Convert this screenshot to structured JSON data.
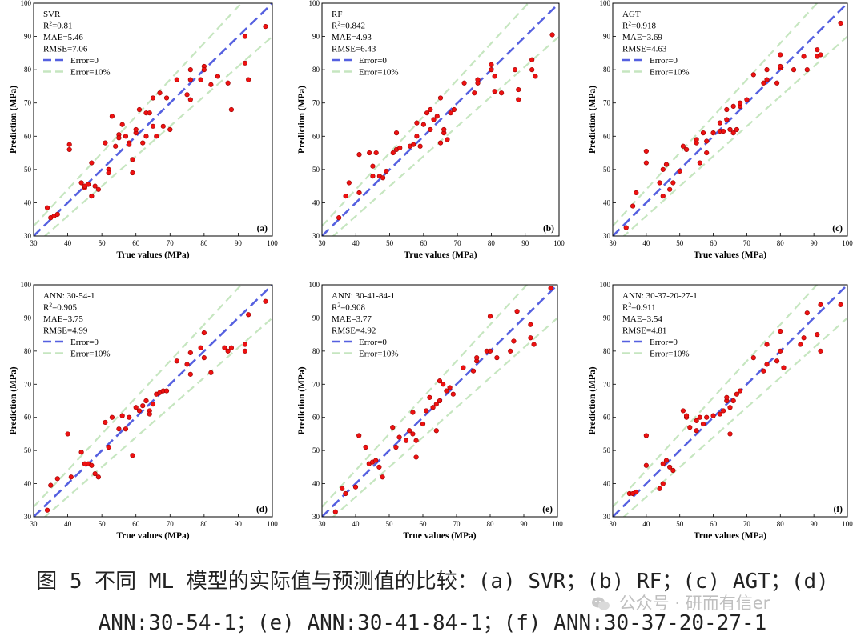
{
  "common": {
    "xlabel": "True values (MPa)",
    "ylabel": "Prediction (MPa)",
    "legend_error0": "Error=0",
    "legend_error10": "Error=10%",
    "colors": {
      "error0_line": "#5560e0",
      "error10_line": "#c6e6c0",
      "point_fill": "#ee1111",
      "point_stroke": "#990000",
      "axis": "#000000"
    }
  },
  "chart_data": [
    {
      "type": "scatter",
      "panel": "(a)",
      "model": "SVR",
      "stats": {
        "r2": "0.81",
        "mae": "5.46",
        "rmse": "7.06"
      },
      "xlim": [
        30,
        100
      ],
      "ylim": [
        30,
        100
      ],
      "ticks": [
        30,
        40,
        50,
        60,
        70,
        80,
        90,
        100
      ],
      "points": [
        [
          34,
          38.5
        ],
        [
          35,
          35.5
        ],
        [
          36,
          36
        ],
        [
          37,
          36.5
        ],
        [
          40.5,
          56
        ],
        [
          40.5,
          57.5
        ],
        [
          44,
          46
        ],
        [
          45,
          44.5
        ],
        [
          45,
          45
        ],
        [
          46,
          45.5
        ],
        [
          47,
          42
        ],
        [
          47,
          52
        ],
        [
          48,
          45
        ],
        [
          49,
          44
        ],
        [
          51,
          58
        ],
        [
          52,
          50
        ],
        [
          52,
          49
        ],
        [
          53,
          66
        ],
        [
          54,
          57
        ],
        [
          55,
          60.5
        ],
        [
          55,
          59.5
        ],
        [
          56,
          63.5
        ],
        [
          57,
          60
        ],
        [
          58,
          58
        ],
        [
          58,
          57.5
        ],
        [
          59,
          53
        ],
        [
          59,
          49
        ],
        [
          60,
          61
        ],
        [
          60,
          62
        ],
        [
          61,
          68
        ],
        [
          62,
          58
        ],
        [
          63,
          67
        ],
        [
          63,
          60
        ],
        [
          64,
          67
        ],
        [
          65,
          71.5
        ],
        [
          65,
          63
        ],
        [
          66,
          60
        ],
        [
          67,
          73
        ],
        [
          68,
          63
        ],
        [
          69,
          71.5
        ],
        [
          70,
          62
        ],
        [
          72,
          77
        ],
        [
          75,
          72.5
        ],
        [
          76,
          71
        ],
        [
          76,
          77
        ],
        [
          76,
          80
        ],
        [
          79,
          77
        ],
        [
          80,
          81
        ],
        [
          80,
          80
        ],
        [
          82,
          75.5
        ],
        [
          84,
          78
        ],
        [
          87,
          76
        ],
        [
          88,
          68
        ],
        [
          92,
          82
        ],
        [
          92,
          90
        ],
        [
          93,
          77
        ],
        [
          98,
          93
        ]
      ]
    },
    {
      "type": "scatter",
      "panel": "(b)",
      "model": "RF",
      "stats": {
        "r2": "0.842",
        "mae": "4.93",
        "rmse": "6.43"
      },
      "xlim": [
        30,
        100
      ],
      "ylim": [
        30,
        100
      ],
      "ticks": [
        30,
        40,
        50,
        60,
        70,
        80,
        90,
        100
      ],
      "points": [
        [
          35,
          35.5
        ],
        [
          37,
          42
        ],
        [
          38,
          46
        ],
        [
          41,
          43
        ],
        [
          41,
          54.5
        ],
        [
          44,
          55
        ],
        [
          45,
          51
        ],
        [
          45,
          48
        ],
        [
          46,
          55
        ],
        [
          47,
          48
        ],
        [
          48,
          47.5
        ],
        [
          49,
          49.5
        ],
        [
          51,
          55
        ],
        [
          52,
          56
        ],
        [
          52,
          61
        ],
        [
          53,
          56.5
        ],
        [
          56,
          57
        ],
        [
          57,
          57.5
        ],
        [
          58,
          60
        ],
        [
          58,
          64
        ],
        [
          59,
          57
        ],
        [
          60,
          63.5
        ],
        [
          61,
          67
        ],
        [
          62,
          62
        ],
        [
          62,
          68
        ],
        [
          63,
          65
        ],
        [
          64,
          66
        ],
        [
          65,
          71.5
        ],
        [
          65,
          58
        ],
        [
          66,
          61
        ],
        [
          66,
          62
        ],
        [
          67,
          59
        ],
        [
          68,
          67
        ],
        [
          69,
          68
        ],
        [
          72,
          76
        ],
        [
          75,
          73
        ],
        [
          76,
          76
        ],
        [
          76,
          77
        ],
        [
          80,
          80
        ],
        [
          80,
          81.5
        ],
        [
          81,
          78
        ],
        [
          81,
          73.5
        ],
        [
          83,
          73
        ],
        [
          87,
          80
        ],
        [
          88,
          71
        ],
        [
          88,
          74
        ],
        [
          92,
          80
        ],
        [
          92,
          83
        ],
        [
          93,
          78
        ],
        [
          98,
          90.5
        ]
      ]
    },
    {
      "type": "scatter",
      "panel": "(c)",
      "model": "AGT",
      "stats": {
        "r2": "0.918",
        "mae": "3.69",
        "rmse": "4.63"
      },
      "xlim": [
        30,
        100
      ],
      "ylim": [
        30,
        100
      ],
      "ticks": [
        30,
        40,
        50,
        60,
        70,
        80,
        90,
        100
      ],
      "points": [
        [
          34,
          32.5
        ],
        [
          36,
          39
        ],
        [
          37,
          43
        ],
        [
          40,
          52
        ],
        [
          40,
          55.5
        ],
        [
          44,
          46
        ],
        [
          45,
          42
        ],
        [
          45,
          50
        ],
        [
          46,
          51.5
        ],
        [
          47,
          44
        ],
        [
          48,
          46
        ],
        [
          50,
          49.5
        ],
        [
          51,
          57
        ],
        [
          52,
          56
        ],
        [
          55,
          58
        ],
        [
          55,
          59
        ],
        [
          56,
          52
        ],
        [
          57,
          61
        ],
        [
          58,
          58.5
        ],
        [
          58,
          55
        ],
        [
          60,
          61
        ],
        [
          62,
          61.5
        ],
        [
          62,
          64
        ],
        [
          63,
          61.5
        ],
        [
          64,
          68
        ],
        [
          64,
          65
        ],
        [
          65,
          62
        ],
        [
          66,
          69
        ],
        [
          66,
          61
        ],
        [
          67,
          62
        ],
        [
          68,
          69
        ],
        [
          68,
          70
        ],
        [
          70,
          71
        ],
        [
          72,
          78.5
        ],
        [
          75,
          76
        ],
        [
          76,
          77
        ],
        [
          76,
          80
        ],
        [
          79,
          76
        ],
        [
          80,
          80.5
        ],
        [
          80,
          81
        ],
        [
          80,
          84.5
        ],
        [
          84,
          80
        ],
        [
          87,
          84
        ],
        [
          88,
          80
        ],
        [
          91,
          84
        ],
        [
          91,
          86
        ],
        [
          92,
          84.5
        ],
        [
          98,
          94
        ]
      ]
    },
    {
      "type": "scatter",
      "panel": "(d)",
      "model": "ANN: 30-54-1",
      "stats": {
        "r2": "0.905",
        "mae": "3.75",
        "rmse": "4.99"
      },
      "xlim": [
        30,
        100
      ],
      "ylim": [
        30,
        100
      ],
      "ticks": [
        30,
        40,
        50,
        60,
        70,
        80,
        90,
        100
      ],
      "points": [
        [
          34,
          32
        ],
        [
          35,
          39.5
        ],
        [
          37,
          41.5
        ],
        [
          40,
          55
        ],
        [
          41,
          42
        ],
        [
          44,
          49.5
        ],
        [
          45,
          46
        ],
        [
          46,
          46
        ],
        [
          47,
          45.5
        ],
        [
          48,
          43
        ],
        [
          49,
          42
        ],
        [
          51,
          58.5
        ],
        [
          52,
          51
        ],
        [
          53,
          60
        ],
        [
          55,
          56.5
        ],
        [
          56,
          60.5
        ],
        [
          57,
          56.5
        ],
        [
          58,
          60
        ],
        [
          59,
          48.5
        ],
        [
          60,
          63
        ],
        [
          61,
          62
        ],
        [
          62,
          63.5
        ],
        [
          63,
          65
        ],
        [
          64,
          62
        ],
        [
          64,
          61
        ],
        [
          65,
          64
        ],
        [
          66,
          67
        ],
        [
          67,
          67.5
        ],
        [
          68,
          68
        ],
        [
          69,
          68
        ],
        [
          72,
          77
        ],
        [
          75,
          76
        ],
        [
          76,
          79.5
        ],
        [
          76,
          73
        ],
        [
          79,
          81
        ],
        [
          80,
          78
        ],
        [
          80,
          85.5
        ],
        [
          82,
          73.5
        ],
        [
          86,
          81
        ],
        [
          87,
          80
        ],
        [
          88,
          81
        ],
        [
          92,
          80
        ],
        [
          92,
          82
        ],
        [
          93,
          91
        ],
        [
          98,
          95
        ]
      ]
    },
    {
      "type": "scatter",
      "panel": "(e)",
      "model": "ANN: 30-41-84-1",
      "stats": {
        "r2": "0.908",
        "mae": "3.77",
        "rmse": "4.92"
      },
      "xlim": [
        30,
        100
      ],
      "ylim": [
        30,
        100
      ],
      "ticks": [
        30,
        40,
        50,
        60,
        70,
        80,
        90,
        100
      ],
      "points": [
        [
          34,
          31.5
        ],
        [
          36,
          38.5
        ],
        [
          37,
          37
        ],
        [
          40,
          39
        ],
        [
          41,
          54.5
        ],
        [
          43,
          51
        ],
        [
          44,
          46
        ],
        [
          45,
          46.5
        ],
        [
          46,
          47
        ],
        [
          47,
          45
        ],
        [
          48,
          42
        ],
        [
          51,
          57
        ],
        [
          52,
          51
        ],
        [
          53,
          54
        ],
        [
          55,
          53
        ],
        [
          56,
          56
        ],
        [
          57,
          61.5
        ],
        [
          57,
          55
        ],
        [
          58,
          53
        ],
        [
          58,
          48
        ],
        [
          60,
          58
        ],
        [
          61,
          62
        ],
        [
          62,
          66
        ],
        [
          63,
          63
        ],
        [
          64,
          56
        ],
        [
          64,
          64
        ],
        [
          65,
          71
        ],
        [
          65,
          65
        ],
        [
          66,
          70
        ],
        [
          67,
          68
        ],
        [
          68,
          69
        ],
        [
          69,
          67
        ],
        [
          72,
          75
        ],
        [
          75,
          74
        ],
        [
          76,
          77
        ],
        [
          76,
          78
        ],
        [
          79,
          80
        ],
        [
          80,
          80
        ],
        [
          80,
          90.5
        ],
        [
          82,
          78
        ],
        [
          86,
          80
        ],
        [
          87,
          83
        ],
        [
          88,
          92
        ],
        [
          92,
          84
        ],
        [
          92,
          88
        ],
        [
          93,
          82
        ],
        [
          98,
          99
        ]
      ]
    },
    {
      "type": "scatter",
      "panel": "(f)",
      "model": "ANN: 30-37-20-27-1",
      "stats": {
        "r2": "0.911",
        "mae": "3.54",
        "rmse": "4.81"
      },
      "xlim": [
        30,
        100
      ],
      "ylim": [
        30,
        100
      ],
      "ticks": [
        30,
        40,
        50,
        60,
        70,
        80,
        90,
        100
      ],
      "points": [
        [
          35,
          37
        ],
        [
          36,
          37
        ],
        [
          37,
          37.5
        ],
        [
          40,
          45.5
        ],
        [
          40,
          54.5
        ],
        [
          44,
          38.5
        ],
        [
          45,
          40
        ],
        [
          45,
          46
        ],
        [
          46,
          47
        ],
        [
          47,
          45
        ],
        [
          48,
          44
        ],
        [
          51,
          62
        ],
        [
          52,
          60
        ],
        [
          52,
          60.5
        ],
        [
          53,
          57
        ],
        [
          55,
          56
        ],
        [
          55,
          59
        ],
        [
          56,
          60
        ],
        [
          57,
          58
        ],
        [
          58,
          60
        ],
        [
          60,
          60.5
        ],
        [
          62,
          61
        ],
        [
          63,
          62
        ],
        [
          64,
          65
        ],
        [
          64,
          66
        ],
        [
          65,
          55
        ],
        [
          65,
          63
        ],
        [
          66,
          65
        ],
        [
          67,
          67
        ],
        [
          68,
          68
        ],
        [
          72,
          78
        ],
        [
          75,
          74
        ],
        [
          76,
          76
        ],
        [
          76,
          82
        ],
        [
          79,
          77
        ],
        [
          80,
          80
        ],
        [
          80,
          86
        ],
        [
          81,
          75
        ],
        [
          86,
          82
        ],
        [
          87,
          84
        ],
        [
          88,
          91.5
        ],
        [
          91,
          85
        ],
        [
          92,
          94
        ],
        [
          92,
          80
        ],
        [
          98,
          94
        ]
      ]
    }
  ],
  "caption": {
    "line1": "图 5 不同 ML 模型的实际值与预测值的比较：(a) SVR；(b) RF；(c) AGT；(d)",
    "line2": "ANN:30-54-1；(e) ANN:30-41-84-1；(f) ANN:30-37-20-27-1"
  },
  "watermark": {
    "text": "公众号 · 研而有信er",
    "icon": "wechat-bubble-icon"
  }
}
